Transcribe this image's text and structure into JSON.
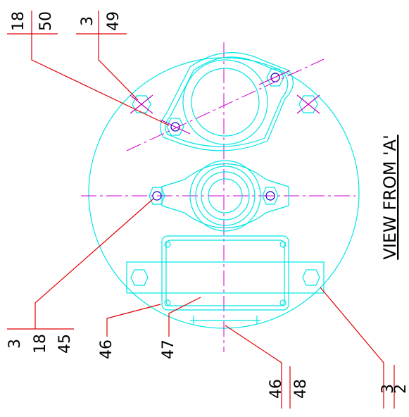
{
  "title": "VIEW FROM 'A'",
  "callouts": [
    {
      "numbers": [
        18,
        50
      ]
    },
    {
      "numbers": [
        3,
        49
      ]
    },
    {
      "numbers": [
        3,
        18,
        45
      ]
    },
    {
      "numbers": [
        46
      ]
    },
    {
      "numbers": [
        47
      ]
    },
    {
      "numbers": [
        46,
        48
      ]
    },
    {
      "numbers": [
        3,
        2
      ]
    }
  ]
}
